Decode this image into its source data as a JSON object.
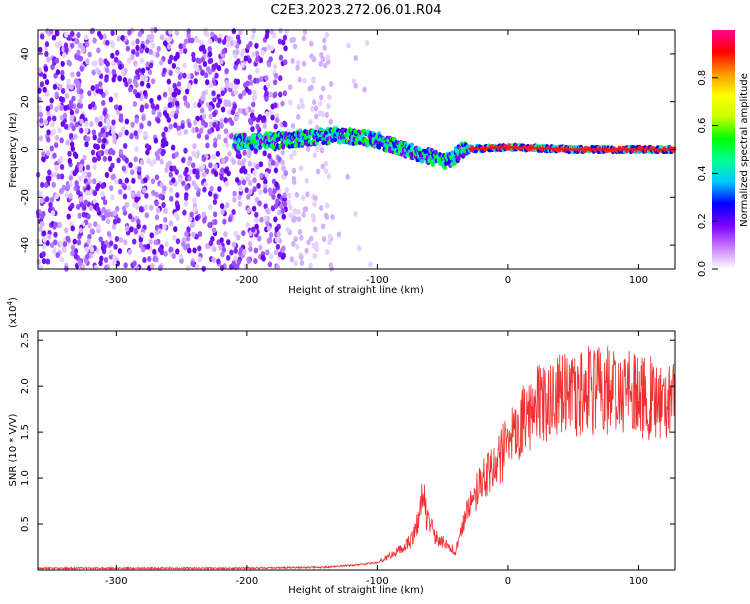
{
  "title": "C2E3.2023.272.06.01.R04",
  "chart_data": [
    {
      "type": "heatmap",
      "xlabel": "Height of straight line (km)",
      "ylabel": "Frequency (Hz)",
      "xlim": [
        -360,
        128
      ],
      "ylim": [
        -50,
        50
      ],
      "xticks": [
        -300,
        -200,
        -100,
        0,
        100
      ],
      "yticks": [
        -40,
        -20,
        0,
        20,
        40
      ],
      "colorbar": {
        "label": "Normalized spectral amplitude",
        "range": [
          0.0,
          1.0
        ],
        "ticks": [
          0.0,
          0.2,
          0.4,
          0.6,
          0.8
        ],
        "colormap": [
          "#ffffff",
          "#c87dff",
          "#7d00ff",
          "#0000ff",
          "#00c8ff",
          "#00ff96",
          "#00ff00",
          "#c8ff00",
          "#ffff00",
          "#ff9600",
          "#ff0000",
          "#ff0096"
        ]
      },
      "features": {
        "noise_band_x": [
          -360,
          -135
        ],
        "signal_line": [
          {
            "x": -210,
            "y": 3
          },
          {
            "x": -170,
            "y": 4
          },
          {
            "x": -130,
            "y": 6
          },
          {
            "x": -100,
            "y": 4
          },
          {
            "x": -80,
            "y": 0
          },
          {
            "x": -60,
            "y": -3
          },
          {
            "x": -45,
            "y": -5
          },
          {
            "x": -35,
            "y": 0
          },
          {
            "x": 0,
            "y": 1
          },
          {
            "x": 50,
            "y": 0
          },
          {
            "x": 128,
            "y": 0
          }
        ]
      }
    },
    {
      "type": "line",
      "xlabel": "Height of straight line (km)",
      "ylabel": "SNR (10 * V/V)",
      "yscale_label": "(x10",
      "yscale_exp": "4",
      "yscale_close": ")",
      "xlim": [
        -360,
        128
      ],
      "ylim": [
        0,
        2.6
      ],
      "xticks": [
        -300,
        -200,
        -100,
        0,
        100
      ],
      "yticks": [
        0.5,
        1.0,
        1.5,
        2.0,
        2.5
      ],
      "color": "#ee3030",
      "series": [
        {
          "values": [
            [
              -360,
              0.02
            ],
            [
              -300,
              0.02
            ],
            [
              -200,
              0.02
            ],
            [
              -140,
              0.03
            ],
            [
              -120,
              0.05
            ],
            [
              -100,
              0.08
            ],
            [
              -85,
              0.2
            ],
            [
              -75,
              0.3
            ],
            [
              -68,
              0.55
            ],
            [
              -65,
              0.9
            ],
            [
              -62,
              0.55
            ],
            [
              -55,
              0.35
            ],
            [
              -45,
              0.25
            ],
            [
              -40,
              0.2
            ],
            [
              -30,
              0.7
            ],
            [
              -20,
              0.95
            ],
            [
              -10,
              1.15
            ],
            [
              0,
              1.35
            ],
            [
              10,
              1.6
            ],
            [
              20,
              1.75
            ],
            [
              30,
              1.85
            ],
            [
              40,
              1.9
            ],
            [
              60,
              1.95
            ],
            [
              80,
              1.95
            ],
            [
              100,
              1.9
            ],
            [
              115,
              1.85
            ],
            [
              128,
              1.8
            ]
          ]
        }
      ]
    }
  ]
}
